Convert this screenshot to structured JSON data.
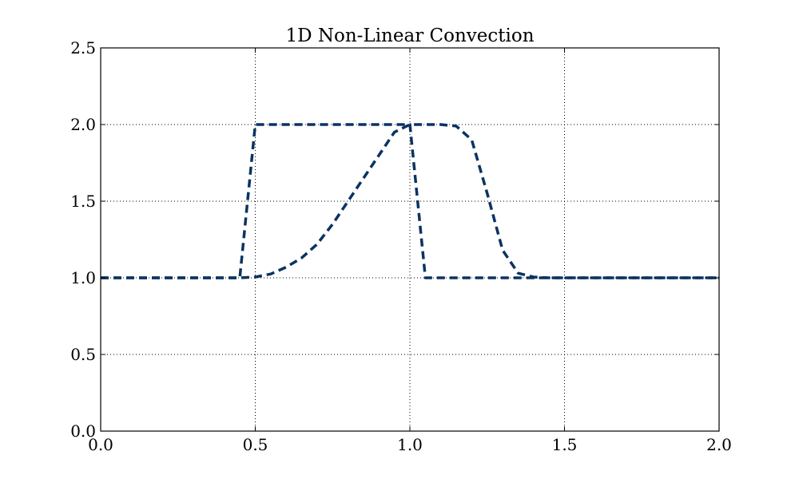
{
  "chart_data": {
    "type": "line",
    "title": "1D Non-Linear Convection",
    "xlabel": "",
    "ylabel": "",
    "xlim": [
      0.0,
      2.0
    ],
    "ylim": [
      0.0,
      2.5
    ],
    "xticks": [
      0.0,
      0.5,
      1.0,
      1.5,
      2.0
    ],
    "xtick_labels": [
      "0.0",
      "0.5",
      "1.0",
      "1.5",
      "2.0"
    ],
    "yticks": [
      0.0,
      0.5,
      1.0,
      1.5,
      2.0,
      2.5
    ],
    "ytick_labels": [
      "0.0",
      "0.5",
      "1.0",
      "1.5",
      "2.0",
      "2.5"
    ],
    "grid": true,
    "legend": "none",
    "line_color": "#0b3361",
    "series": [
      {
        "x": [
          0.0,
          0.45,
          0.5,
          0.75,
          1.0,
          1.05,
          2.0
        ],
        "y": [
          1.0,
          1.0,
          2.0,
          2.0,
          2.0,
          1.0,
          1.0
        ]
      },
      {
        "x": [
          0.0,
          0.45,
          0.5,
          0.55,
          0.6,
          0.65,
          0.7,
          0.75,
          0.8,
          0.85,
          0.9,
          0.95,
          1.0,
          1.05,
          1.1,
          1.15,
          1.2,
          1.25,
          1.3,
          1.35,
          1.4,
          1.45,
          2.0
        ],
        "y": [
          1.0,
          1.0,
          1.005,
          1.025,
          1.07,
          1.13,
          1.22,
          1.35,
          1.5,
          1.65,
          1.8,
          1.95,
          2.0,
          2.0,
          2.0,
          1.99,
          1.9,
          1.55,
          1.18,
          1.03,
          1.005,
          1.0,
          1.0
        ]
      }
    ]
  }
}
